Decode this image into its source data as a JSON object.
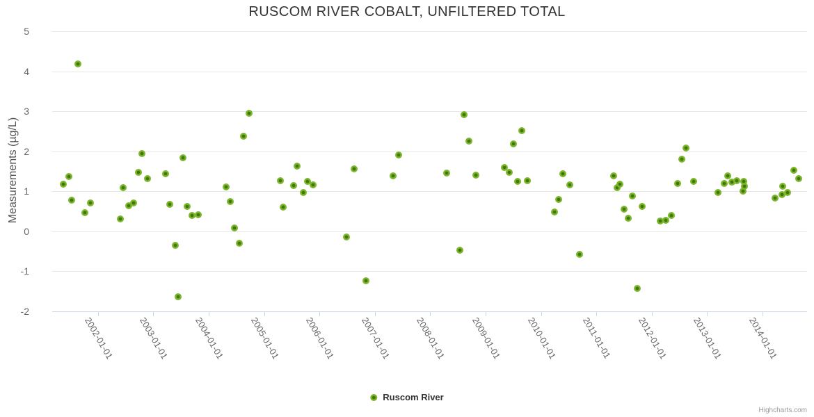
{
  "title": "RUSCOM RIVER COBALT, UNFILTERED TOTAL",
  "credits": "Highcharts.com",
  "legend": {
    "items": [
      {
        "label": "Ruscom River"
      }
    ]
  },
  "y_axis": {
    "title": "Measurements (µg/L)"
  },
  "colors": {
    "marker_outer": "#7cb52b",
    "marker_inner": "#3e7a05",
    "grid": "#e6e6e6",
    "axis_line": "#ccd6eb",
    "label": "#666666",
    "title": "#333333",
    "credits": "#999999"
  },
  "chart_data": {
    "type": "scatter",
    "title": "RUSCOM RIVER COBALT, UNFILTERED TOTAL",
    "xlabel": "",
    "ylabel": "Measurements (µg/L)",
    "ylim": [
      -2,
      5
    ],
    "xlim": [
      2001.2,
      2014.8
    ],
    "x_unit": "decimal_year",
    "grid": true,
    "legend_position": "bottom-center",
    "yticks": [
      5,
      4,
      3,
      2,
      1,
      0,
      -1,
      -2
    ],
    "xticks": [
      "2002-01-01",
      "2003-01-01",
      "2004-01-01",
      "2005-01-01",
      "2006-01-01",
      "2007-01-01",
      "2008-01-01",
      "2009-01-01",
      "2010-01-01",
      "2011-01-01",
      "2012-01-01",
      "2013-01-01",
      "2014-01-01"
    ],
    "series": [
      {
        "name": "Ruscom River",
        "color": "#7cb52b",
        "points": [
          [
            2001.38,
            1.18
          ],
          [
            2001.47,
            1.37
          ],
          [
            2001.52,
            0.78
          ],
          [
            2001.64,
            4.18
          ],
          [
            2001.77,
            0.47
          ],
          [
            2001.87,
            0.7
          ],
          [
            2002.4,
            0.31
          ],
          [
            2002.46,
            1.09
          ],
          [
            2002.55,
            0.64
          ],
          [
            2002.64,
            0.7
          ],
          [
            2002.73,
            1.48
          ],
          [
            2002.8,
            1.94
          ],
          [
            2002.89,
            1.31
          ],
          [
            2003.22,
            1.43
          ],
          [
            2003.3,
            0.68
          ],
          [
            2003.4,
            -0.35
          ],
          [
            2003.45,
            -1.63
          ],
          [
            2003.54,
            1.84
          ],
          [
            2003.61,
            0.62
          ],
          [
            2003.7,
            0.4
          ],
          [
            2003.81,
            0.41
          ],
          [
            2004.31,
            1.1
          ],
          [
            2004.39,
            0.74
          ],
          [
            2004.46,
            0.09
          ],
          [
            2004.55,
            -0.3
          ],
          [
            2004.63,
            2.37
          ],
          [
            2004.73,
            2.95
          ],
          [
            2005.3,
            1.26
          ],
          [
            2005.35,
            0.6
          ],
          [
            2005.53,
            1.14
          ],
          [
            2005.6,
            1.63
          ],
          [
            2005.71,
            0.97
          ],
          [
            2005.78,
            1.24
          ],
          [
            2005.88,
            1.16
          ],
          [
            2006.49,
            -0.15
          ],
          [
            2006.62,
            1.56
          ],
          [
            2006.84,
            -1.24
          ],
          [
            2007.33,
            1.38
          ],
          [
            2007.43,
            1.91
          ],
          [
            2008.3,
            1.45
          ],
          [
            2008.53,
            -0.47
          ],
          [
            2008.61,
            2.91
          ],
          [
            2008.7,
            2.26
          ],
          [
            2008.82,
            1.4
          ],
          [
            2009.34,
            1.6
          ],
          [
            2009.43,
            1.47
          ],
          [
            2009.5,
            2.19
          ],
          [
            2009.58,
            1.24
          ],
          [
            2009.66,
            2.51
          ],
          [
            2009.76,
            1.26
          ],
          [
            2010.24,
            0.49
          ],
          [
            2010.32,
            0.8
          ],
          [
            2010.4,
            1.43
          ],
          [
            2010.52,
            1.16
          ],
          [
            2010.7,
            -0.57
          ],
          [
            2011.31,
            1.38
          ],
          [
            2011.37,
            1.09
          ],
          [
            2011.42,
            1.18
          ],
          [
            2011.5,
            0.56
          ],
          [
            2011.58,
            0.33
          ],
          [
            2011.65,
            0.88
          ],
          [
            2011.74,
            -1.43
          ],
          [
            2011.83,
            0.62
          ],
          [
            2012.16,
            0.26
          ],
          [
            2012.25,
            0.28
          ],
          [
            2012.35,
            0.39
          ],
          [
            2012.47,
            1.2
          ],
          [
            2012.54,
            1.81
          ],
          [
            2012.62,
            2.08
          ],
          [
            2012.76,
            1.24
          ],
          [
            2013.2,
            0.97
          ],
          [
            2013.31,
            1.2
          ],
          [
            2013.37,
            1.38
          ],
          [
            2013.45,
            1.23
          ],
          [
            2013.54,
            1.26
          ],
          [
            2013.65,
            1.0
          ],
          [
            2013.66,
            1.24
          ],
          [
            2013.68,
            1.12
          ],
          [
            2014.23,
            0.83
          ],
          [
            2014.35,
            0.92
          ],
          [
            2014.37,
            1.12
          ],
          [
            2014.45,
            0.97
          ],
          [
            2014.56,
            1.53
          ],
          [
            2014.65,
            1.31
          ]
        ]
      }
    ]
  }
}
